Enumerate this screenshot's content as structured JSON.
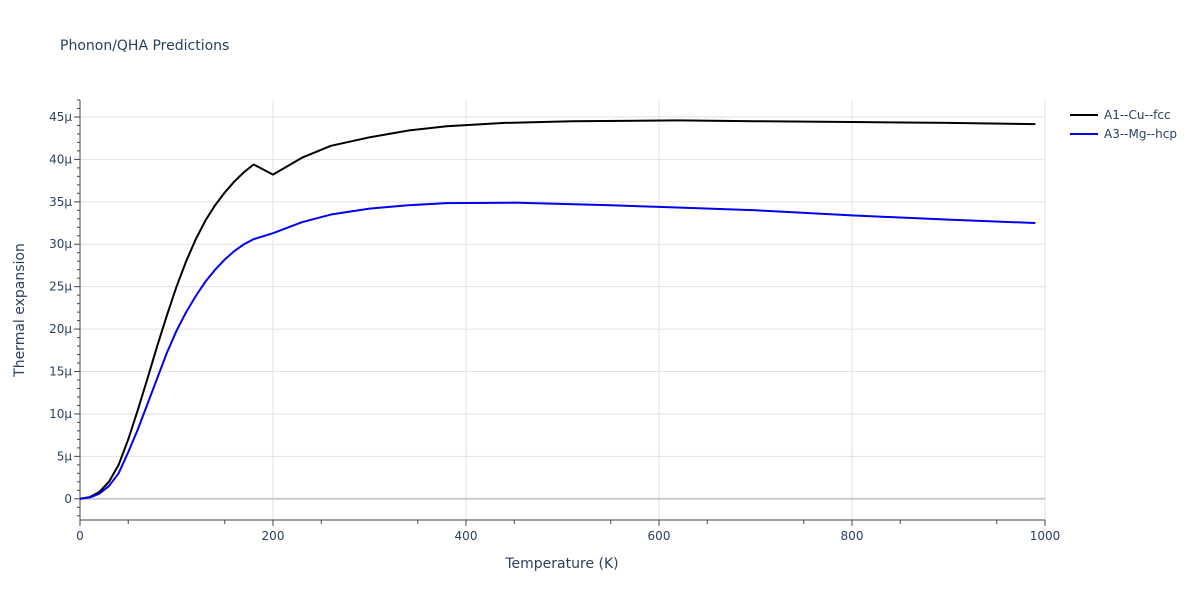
{
  "chart_data": {
    "type": "line",
    "title": "Phonon/QHA Predictions",
    "xlabel": "Temperature (K)",
    "ylabel": "Thermal expansion",
    "xlim": [
      0,
      1000
    ],
    "ylim": [
      -2.5,
      47
    ],
    "x_ticks": [
      0,
      200,
      400,
      600,
      800,
      1000
    ],
    "x_tick_labels": [
      "0",
      "200",
      "400",
      "600",
      "800",
      "1000"
    ],
    "y_ticks": [
      0,
      5,
      10,
      15,
      20,
      25,
      30,
      35,
      40,
      45
    ],
    "y_tick_labels": [
      "0",
      "5μ",
      "10μ",
      "15μ",
      "20μ",
      "25μ",
      "30μ",
      "35μ",
      "40μ",
      "45μ"
    ],
    "grid": true,
    "legend_position": "top-right",
    "series": [
      {
        "name": "A1--Cu--fcc",
        "color": "#000000",
        "x": [
          0,
          10,
          20,
          30,
          40,
          50,
          60,
          70,
          80,
          90,
          100,
          110,
          120,
          130,
          140,
          150,
          160,
          170,
          180,
          200,
          230,
          260,
          300,
          340,
          380,
          440,
          510,
          620,
          700,
          800,
          900,
          990
        ],
        "y": [
          0,
          0.2,
          0.8,
          2.0,
          4.0,
          7.0,
          10.5,
          14.2,
          18.0,
          21.6,
          25.0,
          28.0,
          30.6,
          32.8,
          34.6,
          36.1,
          37.4,
          38.5,
          39.4,
          38.2,
          40.2,
          41.6,
          42.6,
          43.4,
          43.9,
          44.3,
          44.5,
          44.6,
          44.5,
          44.4,
          44.3,
          44.15
        ]
      },
      {
        "name": "A3--Mg--hcp",
        "color": "#0000ee",
        "x": [
          0,
          10,
          20,
          30,
          40,
          50,
          60,
          70,
          80,
          90,
          100,
          110,
          120,
          130,
          140,
          150,
          160,
          170,
          180,
          200,
          230,
          260,
          300,
          340,
          380,
          450,
          550,
          600,
          700,
          800,
          900,
          990
        ],
        "y": [
          0,
          0.15,
          0.6,
          1.5,
          3.0,
          5.5,
          8.2,
          11.2,
          14.2,
          17.2,
          19.8,
          22.0,
          23.9,
          25.6,
          27.0,
          28.2,
          29.2,
          30.0,
          30.6,
          31.3,
          32.6,
          33.5,
          34.2,
          34.6,
          34.85,
          34.9,
          34.6,
          34.4,
          34.0,
          33.4,
          32.9,
          32.5
        ]
      }
    ]
  }
}
